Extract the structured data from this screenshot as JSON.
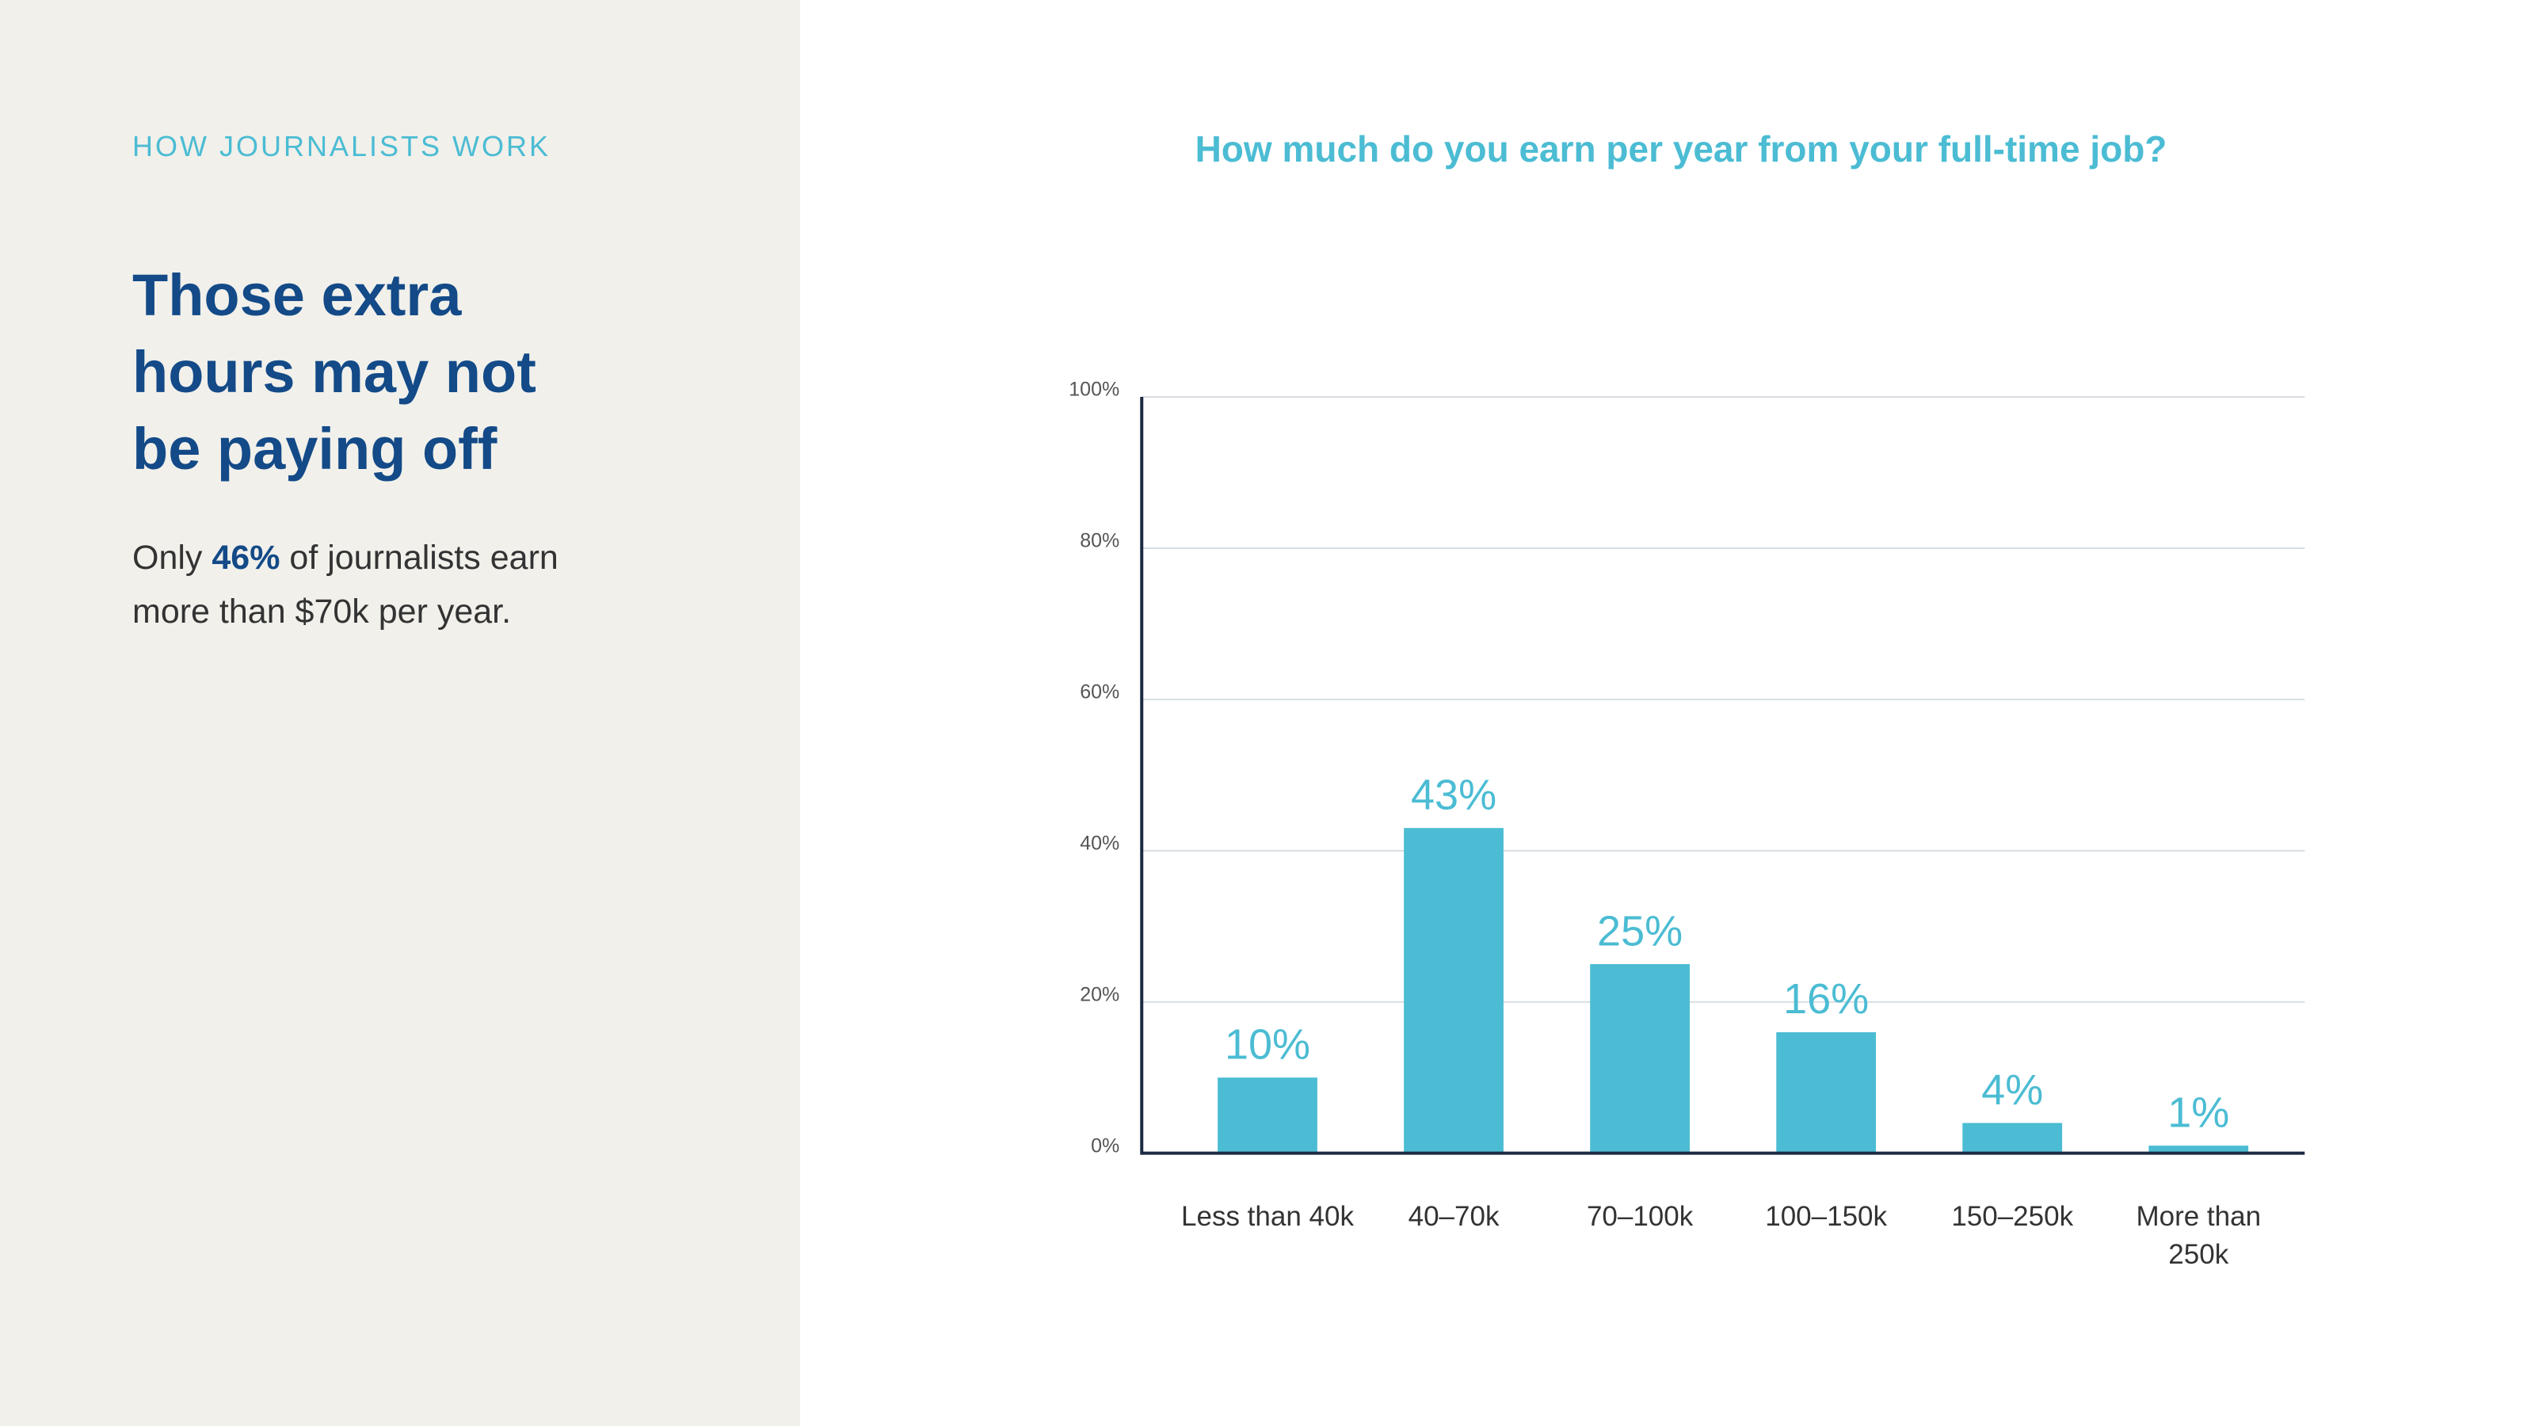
{
  "panel": {
    "eyebrow": "HOW JOURNALISTS WORK",
    "heading_lines": [
      "Those extra",
      "hours may not",
      "be paying off"
    ],
    "body": [
      "Only ",
      "46%",
      " of journalists earn more than $70k per year."
    ]
  },
  "chart_data": {
    "type": "bar",
    "title": "How much do you earn per year from your full-time job?",
    "categories": [
      "Less than 40k",
      "40–70k",
      "70–100k",
      "100–150k",
      "150–250k",
      "More than 250k"
    ],
    "values": [
      10,
      43,
      25,
      16,
      4,
      1
    ],
    "value_labels": [
      "10%",
      "43%",
      "25%",
      "16%",
      "4%",
      "1%"
    ],
    "color": "#4bbcd3",
    "ylim": [
      0,
      100
    ],
    "yticks": [
      {
        "value": 0,
        "label": "0%"
      },
      {
        "value": 20,
        "label": "20%"
      },
      {
        "value": 40,
        "label": "40%"
      },
      {
        "value": 60,
        "label": "60%"
      },
      {
        "value": 80,
        "label": "80%"
      },
      {
        "value": 100,
        "label": "100%"
      }
    ],
    "grid": true
  }
}
